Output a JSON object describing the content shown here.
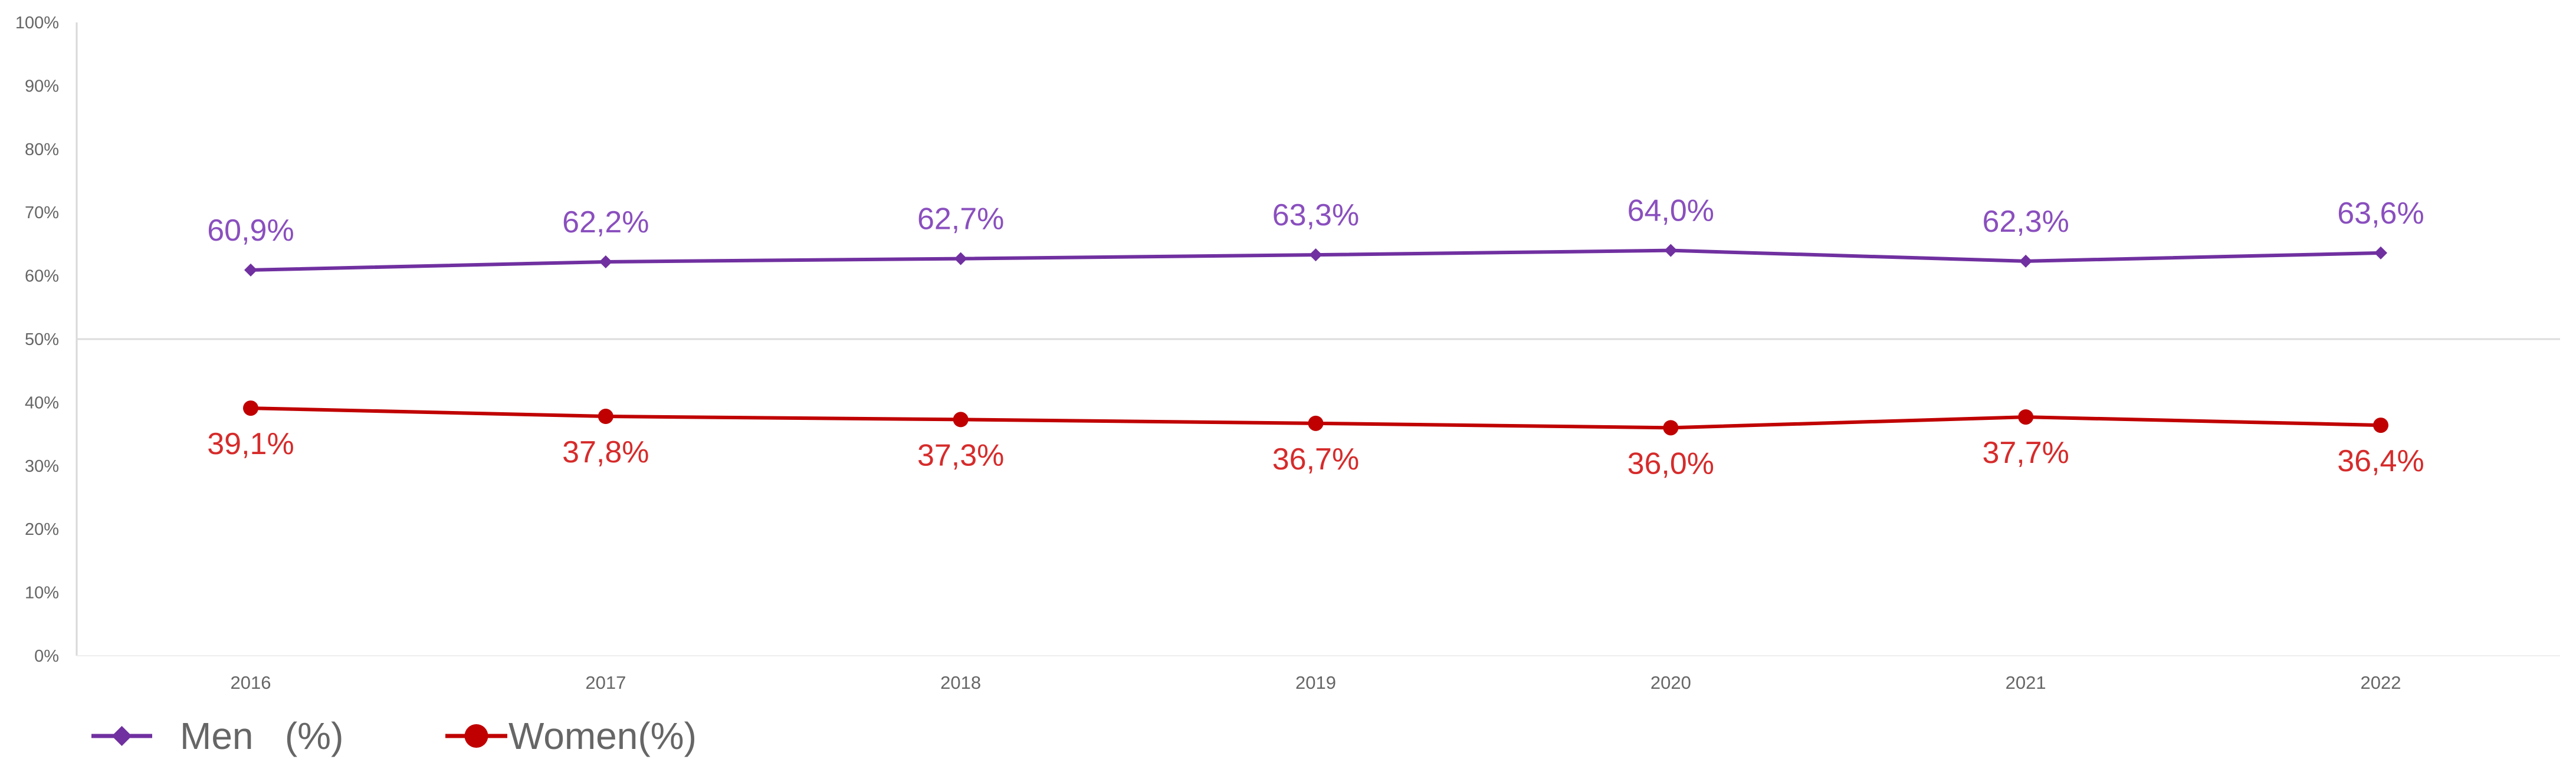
{
  "chart_data": {
    "type": "line",
    "title": "",
    "xlabel": "",
    "ylabel": "",
    "categories": [
      "2016",
      "2017",
      "2018",
      "2019",
      "2020",
      "2021",
      "2022"
    ],
    "ylim": [
      0,
      100
    ],
    "yticks": [
      "0%",
      "10%",
      "20%",
      "30%",
      "40%",
      "50%",
      "60%",
      "70%",
      "80%",
      "90%",
      "100%"
    ],
    "grid": "50% line only",
    "legend_position": "bottom-left",
    "series": [
      {
        "name": "Men   (%)",
        "values": [
          60.9,
          62.2,
          62.7,
          63.3,
          64.0,
          62.3,
          63.6
        ],
        "labels": [
          "60,9%",
          "62,2%",
          "62,7%",
          "63,3%",
          "64,0%",
          "62,3%",
          "63,6%"
        ],
        "color": "#7030a0",
        "label_color": "#8a4fbe",
        "marker": "diamond"
      },
      {
        "name": "Women(%)",
        "values": [
          39.1,
          37.8,
          37.3,
          36.7,
          36.0,
          37.7,
          36.4
        ],
        "labels": [
          "39,1%",
          "37,8%",
          "37,3%",
          "36,7%",
          "36,0%",
          "37,7%",
          "36,4%"
        ],
        "color": "#c00000",
        "label_color": "#d62b2b",
        "marker": "circle"
      }
    ]
  }
}
